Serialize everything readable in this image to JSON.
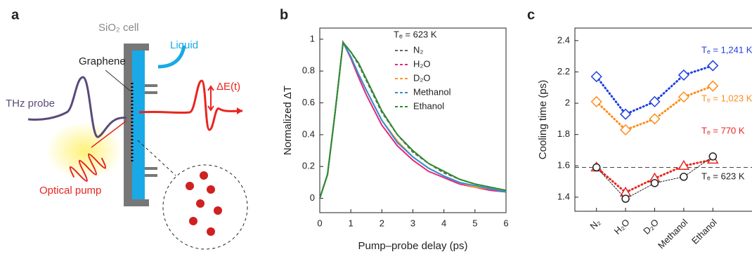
{
  "panel_labels": [
    "a",
    "b",
    "c"
  ],
  "diagram": {
    "cell_label": "SiO₂ cell",
    "liquid_label": "Liquid",
    "graphene_label": "Graphene",
    "probe_label": "THz probe",
    "field_label": "ΔE(t)",
    "pump_label": "Optical pump"
  },
  "chart_data": [
    {
      "type": "line",
      "xlabel": "Pump–probe delay (ps)",
      "ylabel": "Normalized ΔT",
      "legend_title": "Tₑ = 623 K",
      "x": [
        0,
        0.25,
        0.5,
        0.75,
        1,
        1.25,
        1.5,
        2,
        2.5,
        3,
        3.5,
        4,
        4.5,
        5,
        5.5,
        6
      ],
      "series": [
        {
          "name": "N₂",
          "color": "#666666",
          "values": [
            0,
            0.15,
            0.55,
            0.98,
            0.92,
            0.84,
            0.74,
            0.54,
            0.4,
            0.29,
            0.22,
            0.16,
            0.12,
            0.09,
            0.07,
            0.05
          ]
        },
        {
          "name": "H₂O",
          "color": "#e8267a",
          "values": [
            0,
            0.15,
            0.55,
            0.98,
            0.88,
            0.76,
            0.65,
            0.46,
            0.33,
            0.24,
            0.17,
            0.13,
            0.09,
            0.07,
            0.05,
            0.04
          ]
        },
        {
          "name": "D₂O",
          "color": "#f59a22",
          "values": [
            0,
            0.15,
            0.55,
            0.98,
            0.89,
            0.78,
            0.68,
            0.49,
            0.36,
            0.26,
            0.19,
            0.14,
            0.1,
            0.07,
            0.06,
            0.04
          ]
        },
        {
          "name": "Methanol",
          "color": "#2a8fd8",
          "values": [
            0,
            0.15,
            0.55,
            0.98,
            0.89,
            0.78,
            0.68,
            0.49,
            0.35,
            0.26,
            0.19,
            0.14,
            0.1,
            0.08,
            0.06,
            0.04
          ]
        },
        {
          "name": "Ethanol",
          "color": "#2e8b2e",
          "values": [
            0,
            0.15,
            0.55,
            0.98,
            0.92,
            0.85,
            0.75,
            0.55,
            0.4,
            0.3,
            0.22,
            0.17,
            0.12,
            0.09,
            0.07,
            0.05
          ]
        }
      ],
      "xlim": [
        0,
        6
      ],
      "xticks": [
        0,
        1,
        2,
        3,
        4,
        5,
        6
      ],
      "ylim": [
        -0.09,
        1.07
      ],
      "yticks": [
        0,
        0.2,
        0.4,
        0.6,
        0.8,
        1.0
      ]
    },
    {
      "type": "scatter-line",
      "ylabel": "Cooling time (ps)",
      "categories": [
        "N₂",
        "H₂O",
        "D₂O",
        "Methanol",
        "Ethanol"
      ],
      "reference_line": 1.59,
      "series": [
        {
          "label": "Tₑ = 1,241 K",
          "color": "#1f3fe0",
          "marker": "diamond",
          "values": [
            2.17,
            1.93,
            2.01,
            2.18,
            2.24
          ]
        },
        {
          "label": "Tₑ = 1,023 K",
          "color": "#ff8c1a",
          "marker": "diamond",
          "values": [
            2.01,
            1.83,
            1.9,
            2.04,
            2.11
          ]
        },
        {
          "label": "Tₑ = 770 K",
          "color": "#e8251f",
          "marker": "triangle",
          "values": [
            1.59,
            1.43,
            1.52,
            1.6,
            1.64
          ]
        },
        {
          "label": "Tₑ = 623 K",
          "color": "#222222",
          "marker": "circle",
          "values": [
            1.59,
            1.39,
            1.49,
            1.53,
            1.66
          ]
        }
      ],
      "ylim": [
        1.31,
        2.48
      ],
      "yticks": [
        1.4,
        1.6,
        1.8,
        2.0,
        2.2,
        2.4
      ]
    }
  ]
}
